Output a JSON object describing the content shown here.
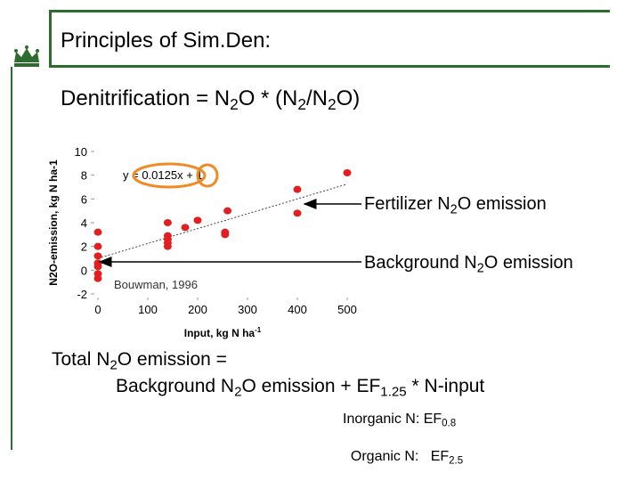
{
  "slide": {
    "title": "Principles of Sim.Den:",
    "heading": {
      "pre": "Denitrification = N",
      "s1": "2",
      "mid1": "O * (N",
      "s2": "2",
      "mid2": "/N",
      "s3": "2",
      "post": "O)"
    },
    "callout_fert": {
      "pre": "Fertilizer N",
      "sub": "2",
      "post": "O emission"
    },
    "callout_bg": {
      "pre": "Background N",
      "sub": "2",
      "post": "O emission"
    },
    "total_line1": {
      "pre": "Total N",
      "sub": "2",
      "post": "O emission ="
    },
    "total_line2": {
      "pre": "Background N",
      "sub1": "2",
      "mid": "O emission + EF",
      "sub2": "1.25",
      "post": " * N-input"
    },
    "ef_inorganic": {
      "pre": "Inorganic N: EF",
      "sub": "0.8"
    },
    "ef_organic": {
      "pre": "Organic N:   EF",
      "sub": "2.5"
    },
    "colors": {
      "accent_green": "#2e6b2e",
      "point_red": "#e02020",
      "highlight_orange": "#f08a24"
    },
    "logo_icon": "crown-icon"
  },
  "chart_data": {
    "type": "scatter",
    "source_note": "Bouwman, 1996",
    "equation": {
      "pre": "y = ",
      "circled": "0.0125x",
      "post": " + 1"
    },
    "xlabel": "Input, kg N ha",
    "xlabel_sup": "-1",
    "ylabel": "N2O-emission, kg N ha-1",
    "xlim": [
      0,
      500
    ],
    "ylim": [
      -2,
      10
    ],
    "xticks": [
      0,
      100,
      200,
      300,
      400,
      500
    ],
    "yticks": [
      -2,
      0,
      2,
      4,
      6,
      8,
      10
    ],
    "trendline": {
      "slope": 0.0125,
      "intercept": 1
    },
    "series": [
      {
        "points": [
          [
            0,
            3.2
          ],
          [
            0,
            2.0
          ],
          [
            0,
            1.2
          ],
          [
            0,
            0.6
          ],
          [
            0,
            0.3
          ],
          [
            0,
            -0.3
          ],
          [
            0,
            -0.7
          ],
          [
            140,
            4.0
          ],
          [
            140,
            2.9
          ],
          [
            140,
            2.6
          ],
          [
            140,
            2.3
          ],
          [
            140,
            2.0
          ],
          [
            175,
            3.6
          ],
          [
            200,
            4.2
          ],
          [
            255,
            3.2
          ],
          [
            255,
            3.0
          ],
          [
            260,
            5.0
          ],
          [
            400,
            6.8
          ],
          [
            400,
            4.8
          ],
          [
            500,
            8.2
          ]
        ]
      }
    ]
  }
}
